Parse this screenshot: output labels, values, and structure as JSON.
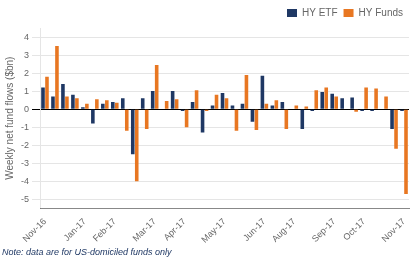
{
  "chart_data": {
    "type": "bar",
    "categories": [
      "Nov-16",
      null,
      null,
      null,
      "Jan-17",
      null,
      null,
      "Feb-17",
      null,
      null,
      null,
      "Mar-17",
      null,
      null,
      "Apr-17",
      null,
      null,
      null,
      "May-17",
      null,
      null,
      null,
      "Jun-17",
      null,
      null,
      "Aug-17",
      null,
      null,
      null,
      "Sep-17",
      null,
      null,
      "Oct-17",
      null,
      null,
      null,
      "Nov-17"
    ],
    "series": [
      {
        "name": "HY ETF",
        "color": "#1f3864",
        "values": [
          1.2,
          0.7,
          1.4,
          0.8,
          0.1,
          -0.8,
          0.3,
          0.4,
          0.6,
          -2.5,
          0.6,
          1.0,
          0.0,
          1.0,
          -0.1,
          0.4,
          -1.3,
          0.2,
          0.9,
          0.2,
          0.3,
          -0.7,
          1.85,
          0.2,
          0.4,
          0.0,
          -1.1,
          -0.1,
          0.95,
          0.85,
          0.6,
          0.65,
          -0.1,
          -0.1,
          0.0,
          -1.1,
          -0.1
        ]
      },
      {
        "name": "HY Funds",
        "color": "#e87722",
        "values": [
          1.8,
          3.5,
          0.7,
          0.6,
          0.3,
          0.55,
          0.5,
          0.35,
          -1.2,
          -4.0,
          -1.1,
          2.45,
          0.45,
          0.55,
          -1.0,
          1.05,
          -0.1,
          0.8,
          0.6,
          -1.2,
          1.9,
          -1.15,
          0.3,
          0.5,
          -1.1,
          0.2,
          0.15,
          1.05,
          1.2,
          0.7,
          0.0,
          -0.15,
          1.2,
          1.15,
          0.7,
          -2.2,
          -4.7
        ]
      }
    ],
    "y_label": "Weekly net fund flows ($bn)",
    "annotation": "Note: data are for US-domiciled funds only",
    "ylim": [
      -5.5,
      4.5
    ],
    "yticks": [
      -5,
      -4,
      -3,
      -2,
      -1,
      0,
      1,
      2,
      3,
      4
    ],
    "grid": true,
    "legend": "upper right"
  }
}
